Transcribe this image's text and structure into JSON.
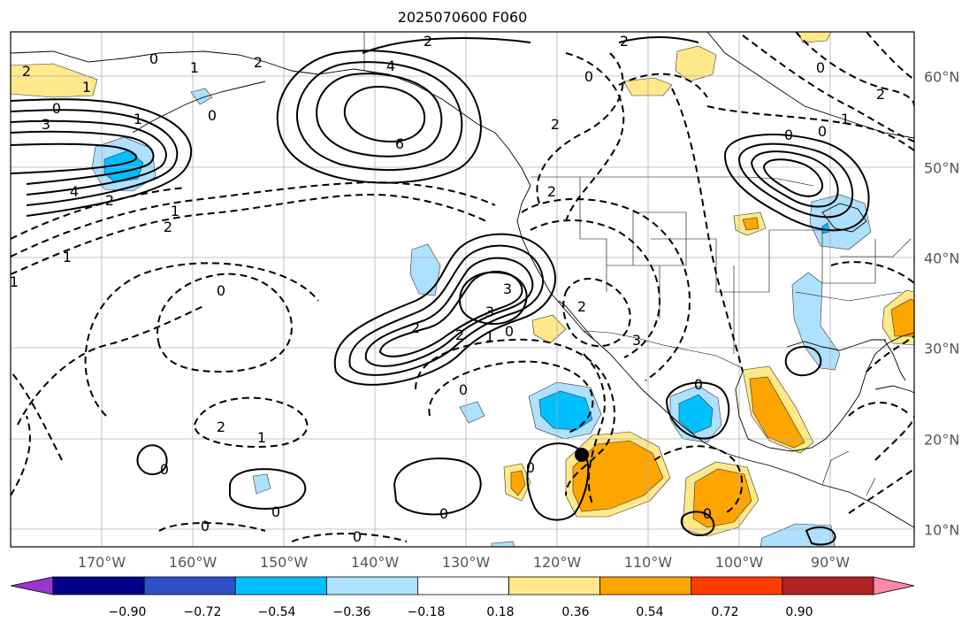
{
  "title": "2025070600 F060",
  "lon_labels": [
    "170°W",
    "160°W",
    "150°W",
    "140°W",
    "130°W",
    "120°W",
    "110°W",
    "100°W",
    "90°W"
  ],
  "lat_labels": [
    "60°N",
    "50°N",
    "40°N",
    "30°N",
    "20°N",
    "10°N"
  ],
  "colorbar": {
    "labels": [
      "−0.90",
      "−0.72",
      "−0.54",
      "−0.36",
      "−0.18",
      "0.18",
      "0.36",
      "0.54",
      "0.72",
      "0.90"
    ],
    "colors": [
      "#9a35d0",
      "#00008b",
      "#3050c8",
      "#00bfff",
      "#aee0ff",
      "#ffffff",
      "#ffe98a",
      "#ffa500",
      "#ff3c00",
      "#b22222",
      "#ff88aa"
    ]
  },
  "contour_labels": {
    "l1": "2",
    "l2": "2",
    "l3": "4",
    "l4": "6",
    "l5": "0",
    "l6": "1",
    "l7": "0",
    "l8": "2",
    "l9": "2",
    "l10": "1",
    "l11": "0",
    "l12": "0",
    "l13": "1",
    "l14": "4",
    "l15": "2",
    "l16": "1",
    "l17": "2",
    "l18": "1",
    "l19": "0",
    "l20": "2",
    "l21": "3",
    "l22": "2",
    "l23": "1",
    "l24": "0",
    "l25": "0",
    "l26": "0",
    "l27": "3",
    "l28": "0",
    "l29": "1",
    "l30": "1",
    "l31": "2",
    "l32": "0",
    "l33": "0",
    "l34": "0",
    "l35": "0",
    "l36": "2",
    "l37": "2",
    "l38": "0",
    "l39": "2",
    "l40": "3",
    "l41": "2",
    "l42": "3",
    "l43": "1",
    "l44": "0",
    "l45": "0",
    "l46": "0",
    "l47": "0"
  }
}
